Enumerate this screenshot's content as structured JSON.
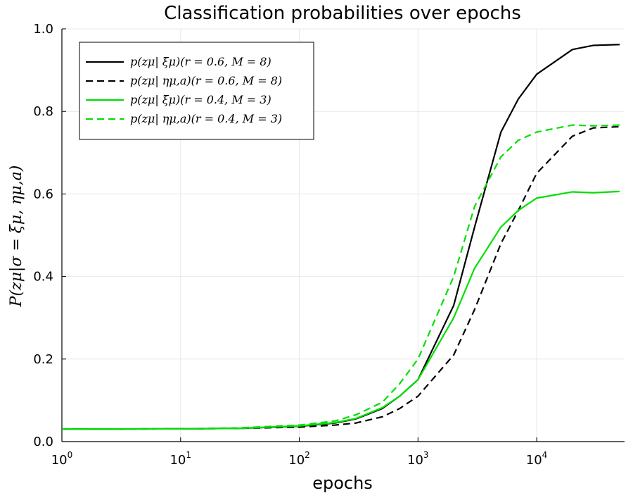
{
  "chart_data": {
    "type": "line",
    "title": "Classification probabilities over epochs",
    "xlabel": "epochs",
    "ylabel": "P(zμ|σ = ξμ, ημ,a)",
    "xscale": "log",
    "xlim": [
      1,
      55000
    ],
    "ylim": [
      0.0,
      1.0
    ],
    "grid": true,
    "legend_position": "top-left",
    "x_ticks": [
      {
        "base": "10",
        "exp": "0",
        "value": 1
      },
      {
        "base": "10",
        "exp": "1",
        "value": 10
      },
      {
        "base": "10",
        "exp": "2",
        "value": 100
      },
      {
        "base": "10",
        "exp": "3",
        "value": 1000
      },
      {
        "base": "10",
        "exp": "4",
        "value": 10000
      }
    ],
    "y_ticks": [
      "0.0",
      "0.2",
      "0.4",
      "0.6",
      "0.8",
      "1.0"
    ],
    "x": [
      1,
      10,
      30,
      100,
      200,
      300,
      500,
      700,
      1000,
      2000,
      3000,
      5000,
      7000,
      10000,
      20000,
      30000,
      50000
    ],
    "series": [
      {
        "name": "p(zμ| ξμ)(r = 0.6, M = 8)",
        "color": "#000000",
        "dash": "solid",
        "values": [
          0.03,
          0.031,
          0.032,
          0.037,
          0.045,
          0.055,
          0.08,
          0.11,
          0.15,
          0.33,
          0.52,
          0.75,
          0.83,
          0.89,
          0.95,
          0.96,
          0.962
        ]
      },
      {
        "name": "p(zμ| ημ,a)(r = 0.6, M = 8)",
        "color": "#000000",
        "dash": "dashed",
        "values": [
          0.03,
          0.031,
          0.032,
          0.035,
          0.04,
          0.045,
          0.06,
          0.08,
          0.11,
          0.21,
          0.32,
          0.48,
          0.56,
          0.65,
          0.74,
          0.76,
          0.763
        ]
      },
      {
        "name": "p(zμ| ξμ)(r = 0.4, M = 3)",
        "color": "#00e000",
        "dash": "solid",
        "values": [
          0.03,
          0.031,
          0.032,
          0.038,
          0.046,
          0.056,
          0.082,
          0.11,
          0.15,
          0.3,
          0.42,
          0.52,
          0.56,
          0.59,
          0.605,
          0.603,
          0.606
        ]
      },
      {
        "name": "p(zμ| ημ,a)(r = 0.4, M = 3)",
        "color": "#00e000",
        "dash": "dashed",
        "values": [
          0.03,
          0.031,
          0.033,
          0.04,
          0.05,
          0.065,
          0.095,
          0.14,
          0.2,
          0.4,
          0.57,
          0.69,
          0.73,
          0.75,
          0.767,
          0.765,
          0.767
        ]
      }
    ]
  }
}
